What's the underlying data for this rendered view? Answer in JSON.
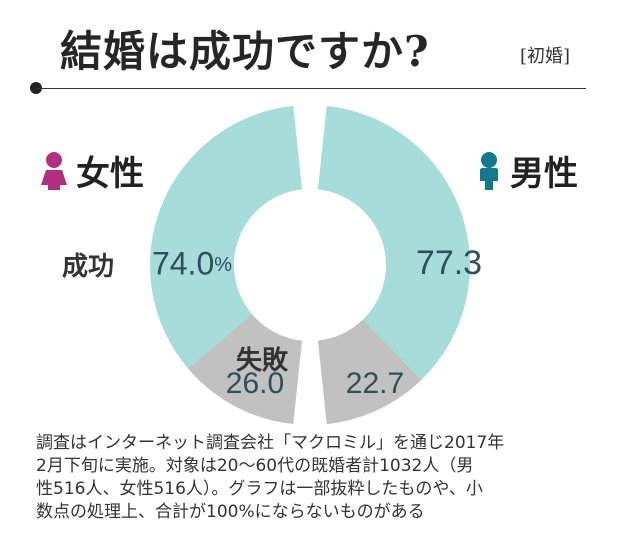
{
  "header": {
    "title": "結婚は成功ですか?",
    "subtitle": "[初婚]"
  },
  "colors": {
    "success": "#a6dcd9",
    "failure": "#c1c1c1",
    "female": "#b0307f",
    "male": "#127a8a"
  },
  "chart_data": {
    "type": "pie",
    "categories": [
      "成功",
      "失敗"
    ],
    "series": [
      {
        "name": "女性",
        "values": [
          74.0,
          26.0
        ],
        "value_labels": [
          "74.0",
          "26.0"
        ],
        "unit": "%"
      },
      {
        "name": "男性",
        "values": [
          77.3,
          22.7
        ],
        "value_labels": [
          "77.3",
          "22.7"
        ]
      }
    ]
  },
  "labels": {
    "female": "女性",
    "male": "男性",
    "success": "成功",
    "failure": "失敗"
  },
  "icons": {
    "female": "female-figure-icon",
    "male": "male-figure-icon"
  },
  "notes": [
    "調査はインターネット調査会社「マクロミル」を通じ2017年",
    "2月下旬に実施。対象は20〜60代の既婚者計1032人（男",
    "性516人、女性516人）。グラフは一部抜粋したものや、小",
    "数点の処理上、合計が100%にならないものがある"
  ]
}
